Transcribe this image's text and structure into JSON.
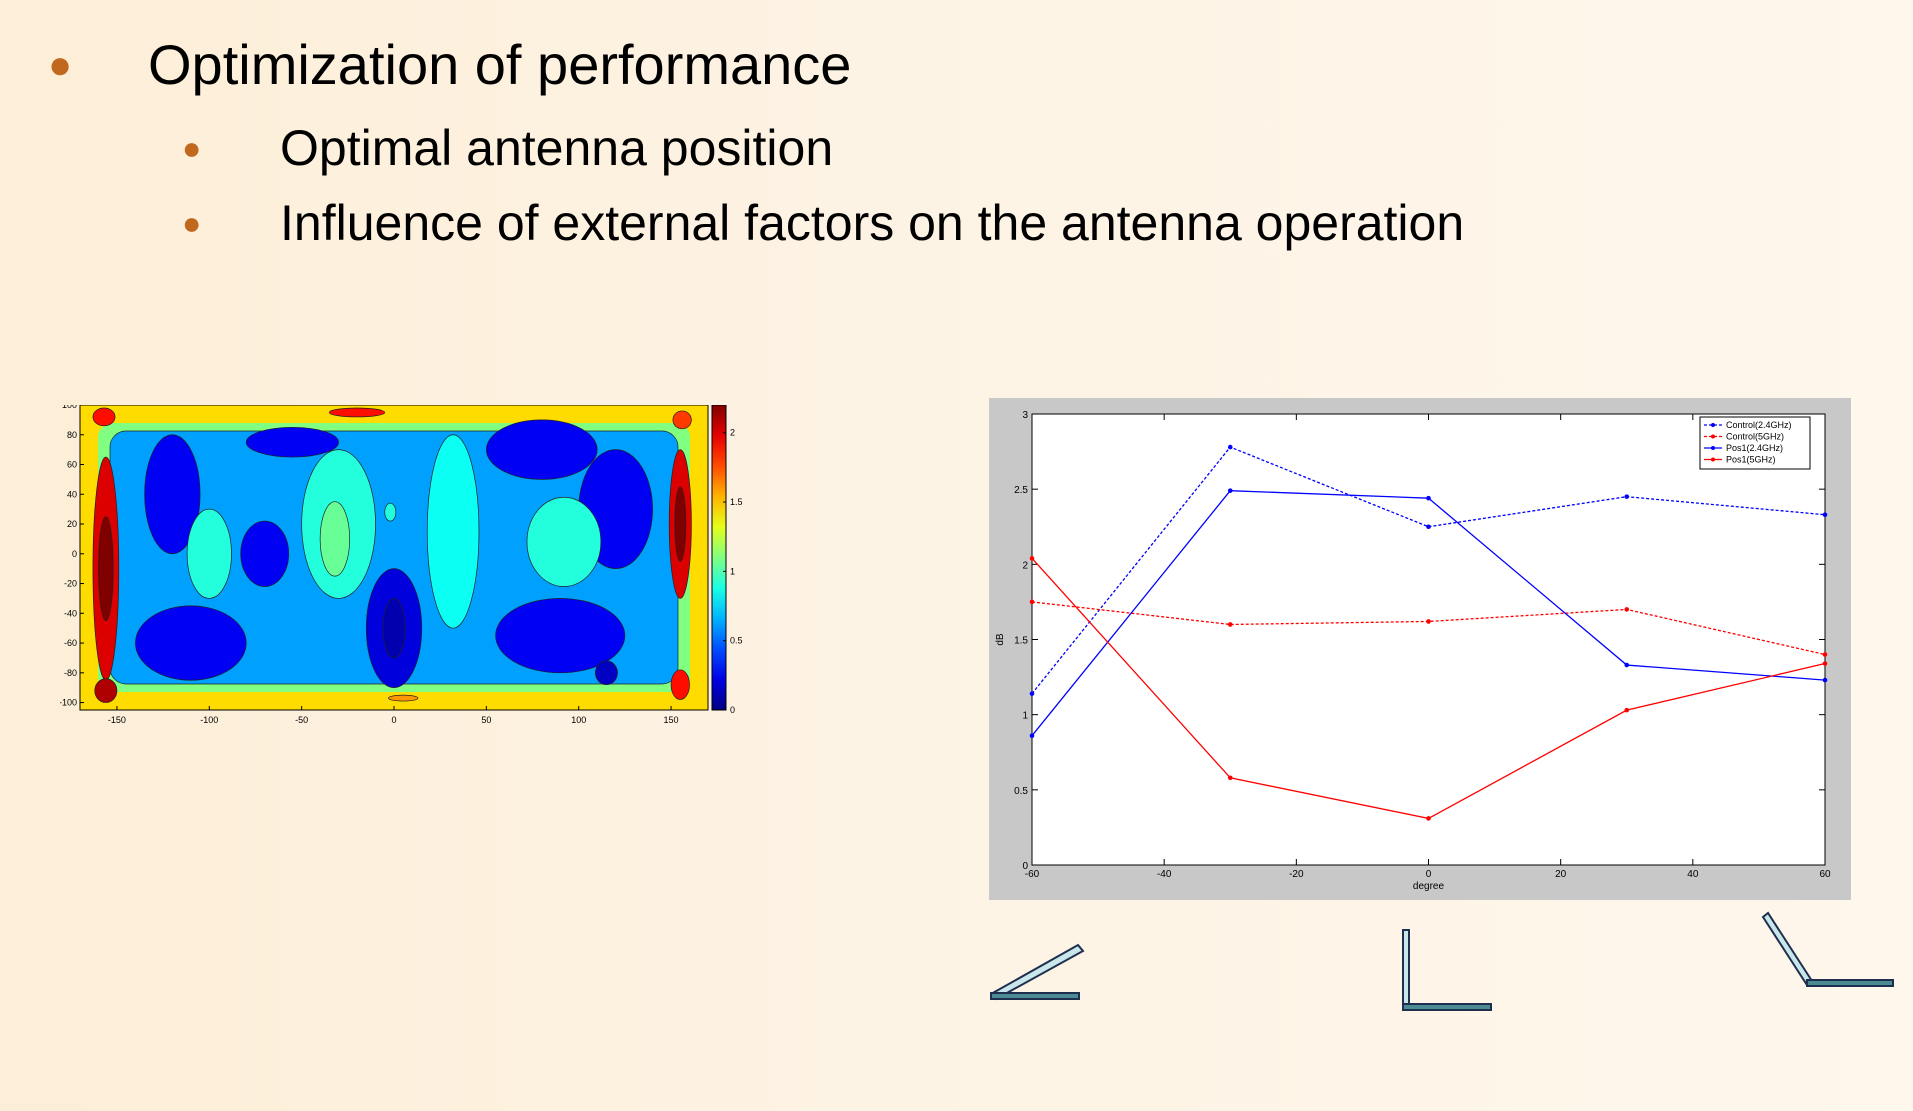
{
  "bullets": {
    "level1": {
      "text": "Optimization of performance"
    },
    "level2": [
      {
        "text": "Optimal antenna position"
      },
      {
        "text": "Influence of external factors on the antenna operation"
      }
    ],
    "bullet_color": "#c0681e"
  },
  "chart_data": [
    {
      "type": "heatmap",
      "title": "",
      "xlabel": "",
      "ylabel": "",
      "xlim": [
        -170,
        170
      ],
      "ylim": [
        -105,
        100
      ],
      "x_ticks": [
        -150,
        -100,
        -50,
        0,
        50,
        100,
        150
      ],
      "y_ticks": [
        100,
        80,
        60,
        40,
        20,
        0,
        -20,
        -40,
        -60,
        -80,
        -100
      ],
      "colorbar": {
        "min": 0,
        "max": 2.2,
        "ticks": [
          2,
          1.5,
          1,
          0.5,
          0
        ]
      },
      "regions": [
        {
          "cx": -156,
          "cy": -10,
          "rx": 7,
          "ry": 75,
          "value": 2.0
        },
        {
          "cx": -156,
          "cy": -10,
          "rx": 4,
          "ry": 35,
          "value": 2.2
        },
        {
          "cx": 155,
          "cy": 20,
          "rx": 6,
          "ry": 50,
          "value": 2.0
        },
        {
          "cx": 155,
          "cy": 20,
          "rx": 3,
          "ry": 25,
          "value": 2.2
        },
        {
          "cx": -156,
          "cy": -92,
          "rx": 6,
          "ry": 8,
          "value": 2.1
        },
        {
          "cx": 155,
          "cy": -88,
          "rx": 5,
          "ry": 10,
          "value": 1.9
        },
        {
          "cx": -157,
          "cy": 92,
          "rx": 6,
          "ry": 6,
          "value": 1.9
        },
        {
          "cx": 156,
          "cy": 90,
          "rx": 5,
          "ry": 6,
          "value": 1.8
        },
        {
          "cx": -20,
          "cy": 95,
          "rx": 15,
          "ry": 3,
          "value": 1.9
        },
        {
          "cx": 5,
          "cy": -97,
          "rx": 8,
          "ry": 2,
          "value": 1.6
        },
        {
          "cx": -120,
          "cy": 40,
          "rx": 15,
          "ry": 40,
          "value": 0.25
        },
        {
          "cx": -110,
          "cy": -60,
          "rx": 30,
          "ry": 25,
          "value": 0.25
        },
        {
          "cx": -55,
          "cy": 75,
          "rx": 25,
          "ry": 10,
          "value": 0.25
        },
        {
          "cx": 0,
          "cy": -50,
          "rx": 15,
          "ry": 40,
          "value": 0.2
        },
        {
          "cx": 0,
          "cy": -50,
          "rx": 6,
          "ry": 20,
          "value": 0.1
        },
        {
          "cx": 80,
          "cy": 70,
          "rx": 30,
          "ry": 20,
          "value": 0.25
        },
        {
          "cx": 120,
          "cy": 30,
          "rx": 20,
          "ry": 40,
          "value": 0.25
        },
        {
          "cx": 90,
          "cy": -55,
          "rx": 35,
          "ry": 25,
          "value": 0.25
        },
        {
          "cx": 115,
          "cy": -80,
          "rx": 6,
          "ry": 8,
          "value": 0.15
        },
        {
          "cx": -70,
          "cy": 0,
          "rx": 13,
          "ry": 22,
          "value": 0.25
        },
        {
          "cx": -30,
          "cy": 20,
          "rx": 20,
          "ry": 50,
          "value": 0.9
        },
        {
          "cx": -32,
          "cy": 10,
          "rx": 8,
          "ry": 25,
          "value": 1.05
        },
        {
          "cx": -100,
          "cy": 0,
          "rx": 12,
          "ry": 30,
          "value": 0.9
        },
        {
          "cx": 32,
          "cy": 15,
          "rx": 14,
          "ry": 65,
          "value": 0.85
        },
        {
          "cx": 92,
          "cy": 8,
          "rx": 20,
          "ry": 30,
          "value": 0.9
        },
        {
          "cx": -2,
          "cy": 28,
          "rx": 3,
          "ry": 6,
          "value": 0.9
        }
      ]
    },
    {
      "type": "line",
      "title": "",
      "xlabel": "degree",
      "ylabel": "dB",
      "xlim": [
        -60,
        60
      ],
      "ylim": [
        0,
        3
      ],
      "x_ticks": [
        -60,
        -40,
        -20,
        0,
        20,
        40,
        60
      ],
      "y_ticks": [
        0,
        0.5,
        1,
        1.5,
        2,
        2.5,
        3
      ],
      "x": [
        -60,
        -30,
        0,
        30,
        60
      ],
      "legend_position": "top-right",
      "series": [
        {
          "name": "Control(2.4GHz)",
          "color": "#0000ff",
          "dashed": true,
          "values": [
            1.14,
            2.78,
            2.25,
            2.45,
            2.33
          ]
        },
        {
          "name": "Control(5GHz)",
          "color": "#ff0000",
          "dashed": true,
          "values": [
            1.75,
            1.6,
            1.62,
            1.7,
            1.4
          ]
        },
        {
          "name": "Pos1(2.4GHz)",
          "color": "#0000ff",
          "dashed": false,
          "values": [
            0.86,
            2.49,
            2.44,
            1.33,
            1.23
          ]
        },
        {
          "name": "Pos1(5GHz)",
          "color": "#ff0000",
          "dashed": false,
          "values": [
            2.04,
            0.58,
            0.31,
            1.03,
            1.34
          ]
        }
      ]
    }
  ]
}
